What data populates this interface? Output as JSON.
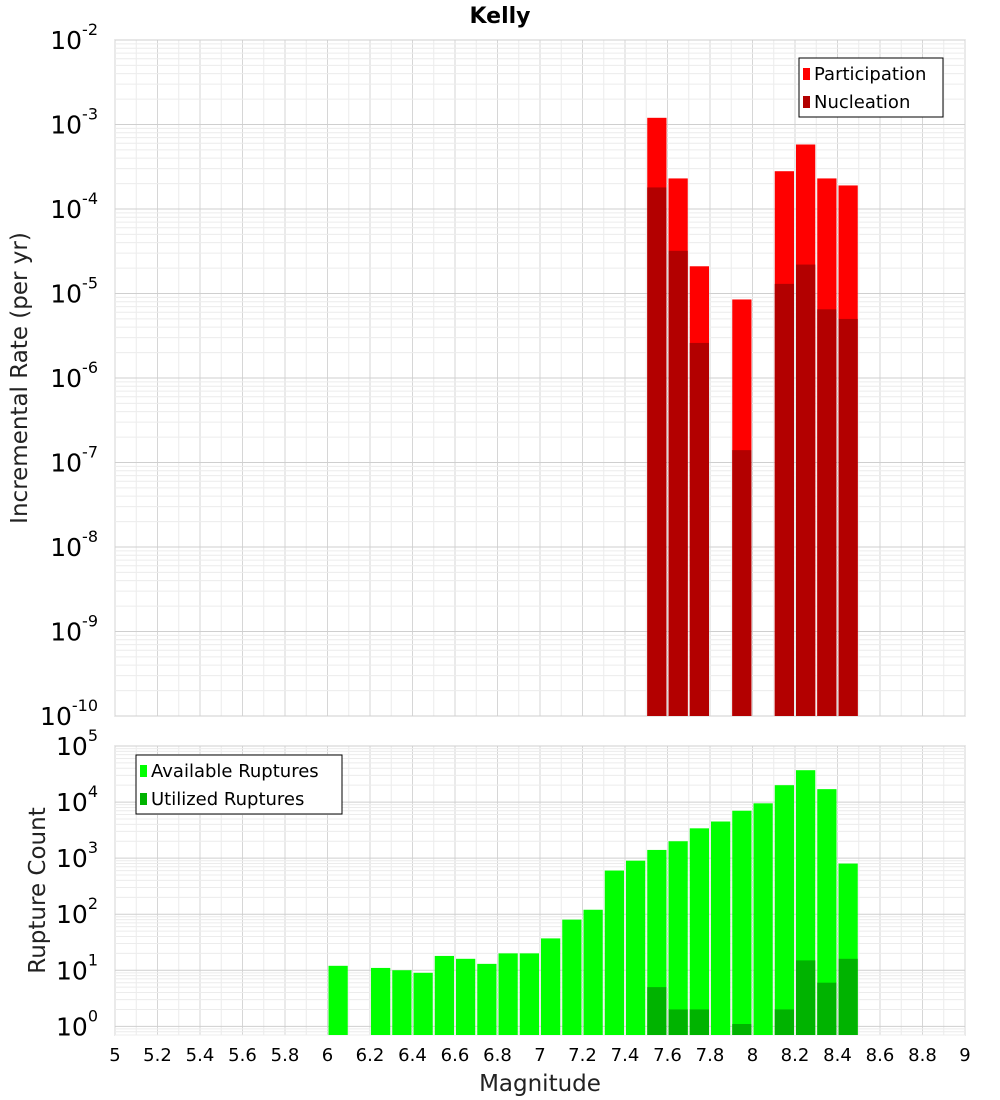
{
  "title": "Kelly",
  "chart_data": [
    {
      "type": "bar",
      "yscale": "log",
      "ylabel": "Incremental Rate (per yr)",
      "xlim": [
        5,
        9
      ],
      "ylim": [
        1e-10,
        0.01
      ],
      "grid": true,
      "bar_width": 0.1,
      "legend_position": "top-right",
      "colors": {
        "Participation": "#ff0000",
        "Nucleation": "#b30000"
      },
      "x": [
        7.55,
        7.65,
        7.75,
        7.95,
        8.15,
        8.25,
        8.35,
        8.45
      ],
      "series": [
        {
          "name": "Participation",
          "values": [
            0.0012,
            0.00023,
            2.1e-05,
            8.5e-06,
            0.00028,
            0.00058,
            0.00023,
            0.00019
          ]
        },
        {
          "name": "Nucleation",
          "values": [
            0.00018,
            3.2e-05,
            2.6e-06,
            1.4e-07,
            1.3e-05,
            2.2e-05,
            6.5e-06,
            5e-06
          ]
        }
      ]
    },
    {
      "type": "bar",
      "yscale": "log",
      "ylabel": "Rupture Count",
      "xlabel": "Magnitude",
      "xlim": [
        5,
        9
      ],
      "ylim": [
        0.7,
        100000.0
      ],
      "grid": true,
      "bar_width": 0.1,
      "legend_position": "top-left",
      "colors": {
        "Available Ruptures": "#00ff00",
        "Utilized Ruptures": "#00b300"
      },
      "x": [
        6.05,
        6.25,
        6.35,
        6.45,
        6.55,
        6.65,
        6.75,
        6.85,
        6.95,
        7.05,
        7.15,
        7.25,
        7.35,
        7.45,
        7.55,
        7.65,
        7.75,
        7.85,
        7.95,
        8.05,
        8.15,
        8.25,
        8.35,
        8.45
      ],
      "series": [
        {
          "name": "Available Ruptures",
          "values": [
            12,
            11,
            10,
            9,
            18,
            16,
            13,
            20,
            20,
            37,
            80,
            120,
            600,
            900,
            1400,
            2000,
            3400,
            4500,
            7000,
            9500,
            20000,
            37000,
            17000,
            800
          ]
        },
        {
          "name": "Utilized Ruptures",
          "values": [
            0,
            0,
            0,
            0,
            0,
            0,
            0,
            0,
            0,
            0,
            0,
            0,
            0,
            0,
            5,
            2,
            2,
            0,
            1.1,
            0,
            2,
            15,
            6,
            16
          ]
        }
      ]
    }
  ],
  "xticks": [
    "5",
    "5.2",
    "5.4",
    "5.6",
    "5.8",
    "6",
    "6.2",
    "6.4",
    "6.6",
    "6.8",
    "7",
    "7.2",
    "7.4",
    "7.6",
    "7.8",
    "8",
    "8.2",
    "8.4",
    "8.6",
    "8.8",
    "9"
  ],
  "top_yticks": [
    {
      "base": "10",
      "exp": "-10",
      "value": 1e-10
    },
    {
      "base": "10",
      "exp": "-9",
      "value": 1e-09
    },
    {
      "base": "10",
      "exp": "-8",
      "value": 1e-08
    },
    {
      "base": "10",
      "exp": "-7",
      "value": 1e-07
    },
    {
      "base": "10",
      "exp": "-6",
      "value": 1e-06
    },
    {
      "base": "10",
      "exp": "-5",
      "value": 1e-05
    },
    {
      "base": "10",
      "exp": "-4",
      "value": 0.0001
    },
    {
      "base": "10",
      "exp": "-3",
      "value": 0.001
    },
    {
      "base": "10",
      "exp": "-2",
      "value": 0.01
    }
  ],
  "bottom_yticks": [
    {
      "base": "10",
      "exp": "0",
      "value": 1
    },
    {
      "base": "10",
      "exp": "1",
      "value": 10
    },
    {
      "base": "10",
      "exp": "2",
      "value": 100
    },
    {
      "base": "10",
      "exp": "3",
      "value": 1000
    },
    {
      "base": "10",
      "exp": "4",
      "value": 10000
    },
    {
      "base": "10",
      "exp": "5",
      "value": 100000
    }
  ]
}
